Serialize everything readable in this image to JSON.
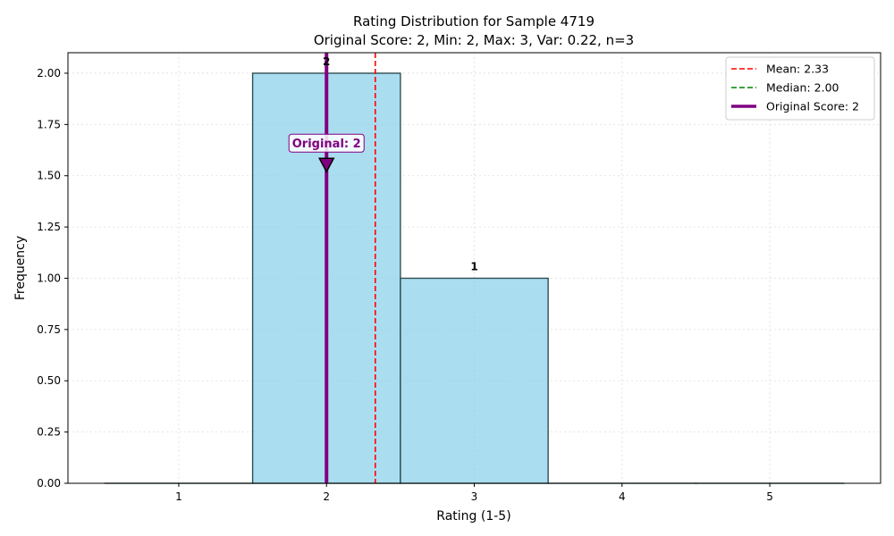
{
  "chart_data": {
    "type": "bar",
    "title": "Rating Distribution for Sample 4719",
    "subtitle": "Original Score: 2, Min: 2, Max: 3, Var: 0.22, n=3",
    "xlabel": "Rating (1-5)",
    "ylabel": "Frequency",
    "categories": [
      1,
      2,
      3,
      4,
      5
    ],
    "values": [
      0,
      2,
      1,
      0,
      0
    ],
    "bar_labels": [
      "",
      "2",
      "1",
      "",
      ""
    ],
    "xlim": [
      0.25,
      5.75
    ],
    "ylim": [
      0,
      2.1
    ],
    "x_ticks": [
      "1",
      "2",
      "3",
      "4",
      "5"
    ],
    "y_ticks": [
      "0.00",
      "0.25",
      "0.50",
      "0.75",
      "1.00",
      "1.25",
      "1.50",
      "1.75",
      "2.00"
    ],
    "grid": true,
    "bar_color": "#87CEEB",
    "bar_edge_color": "#2f4f4f",
    "reference_lines": [
      {
        "label": "Mean: 2.33",
        "x": 2.33,
        "color": "#ff0000",
        "style": "dashed"
      },
      {
        "label": "Median: 2.00",
        "x": 2.0,
        "color": "#008000",
        "style": "dashed"
      },
      {
        "label": "Original Score: 2",
        "x": 2,
        "color": "#800080",
        "style": "solid"
      }
    ],
    "annotation": {
      "text": "Original: 2",
      "x": 2,
      "y": 1.55,
      "color": "#800080"
    },
    "legend_position": "top-right"
  }
}
